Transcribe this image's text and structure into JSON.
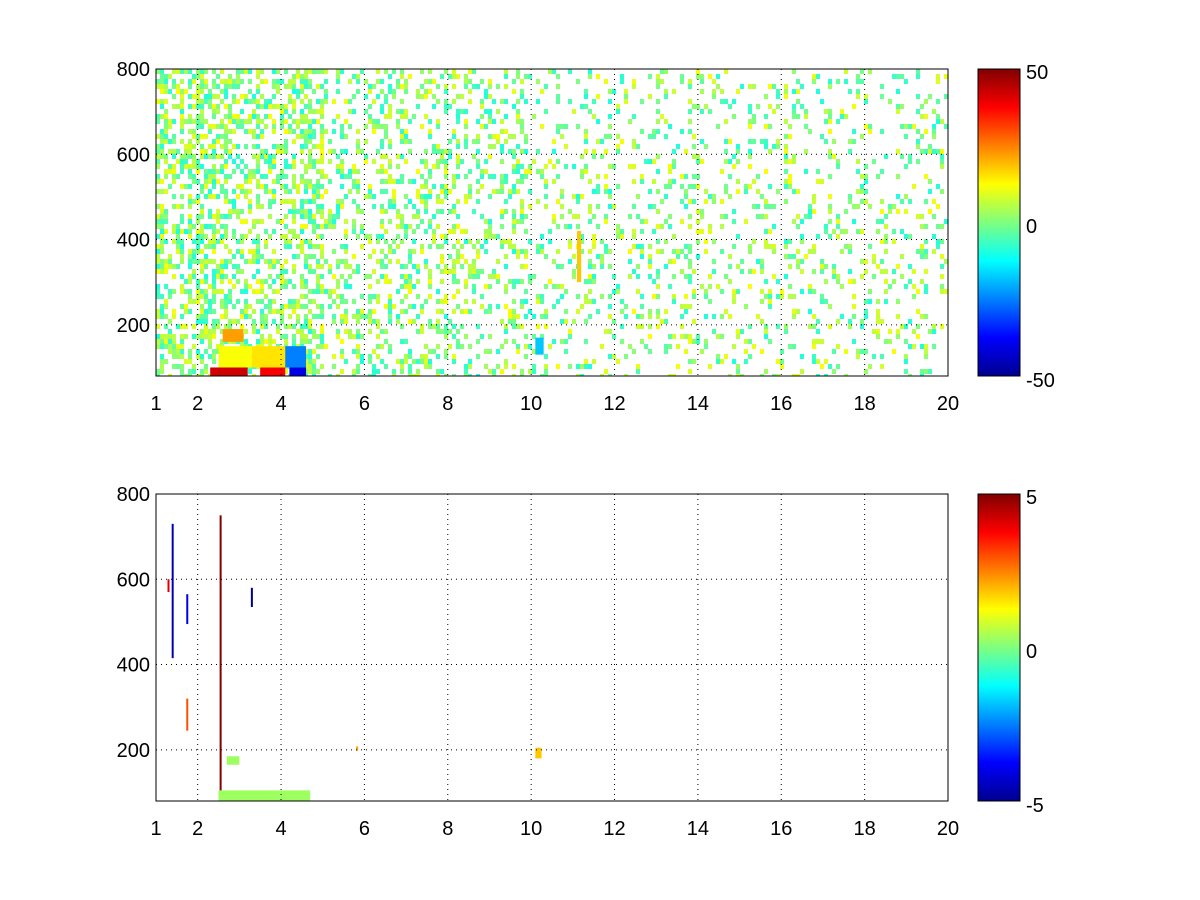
{
  "chart_data": [
    {
      "type": "heatmap",
      "title": "",
      "xlabel": "",
      "ylabel": "",
      "xlim": [
        1,
        20
      ],
      "ylim": [
        80,
        800
      ],
      "x_ticks": [
        1,
        2,
        4,
        6,
        8,
        10,
        12,
        14,
        16,
        18,
        20
      ],
      "y_ticks": [
        200,
        400,
        600,
        800
      ],
      "grid": true,
      "colormap": "jet",
      "colorbar": {
        "min": -50,
        "max": 50,
        "ticks": [
          "50",
          "0",
          "-50"
        ],
        "placement": "right"
      },
      "hotspots": [
        {
          "x": [
            2.3,
            3.2
          ],
          "y": [
            80,
            100
          ],
          "value": 42
        },
        {
          "x": [
            3.5,
            4.1
          ],
          "y": [
            80,
            100
          ],
          "value": 38
        },
        {
          "x": [
            4.2,
            4.6
          ],
          "y": [
            80,
            100
          ],
          "value": -40
        },
        {
          "x": [
            2.5,
            3.3
          ],
          "y": [
            100,
            150
          ],
          "value": 12
        },
        {
          "x": [
            3.3,
            4.1
          ],
          "y": [
            100,
            150
          ],
          "value": 15
        },
        {
          "x": [
            2.6,
            3.1
          ],
          "y": [
            160,
            190
          ],
          "value": 22
        },
        {
          "x": [
            4.1,
            4.6
          ],
          "y": [
            100,
            150
          ],
          "value": -25
        },
        {
          "x": [
            10.1,
            10.3
          ],
          "y": [
            130,
            170
          ],
          "value": -18
        },
        {
          "x": [
            11.1,
            11.2
          ],
          "y": [
            300,
            420
          ],
          "value": 18
        }
      ]
    },
    {
      "type": "heatmap",
      "title": "",
      "xlabel": "",
      "ylabel": "",
      "xlim": [
        1,
        20
      ],
      "ylim": [
        80,
        800
      ],
      "x_ticks": [
        1,
        2,
        4,
        6,
        8,
        10,
        12,
        14,
        16,
        18,
        20
      ],
      "y_ticks": [
        200,
        400,
        600,
        800
      ],
      "grid": true,
      "colormap": "jet",
      "colorbar": {
        "min": -5,
        "max": 5,
        "ticks": [
          "5",
          "0",
          "-5"
        ],
        "placement": "right"
      },
      "features": [
        {
          "kind": "vline",
          "x": 2.55,
          "y": [
            85,
            750
          ],
          "value": 5
        },
        {
          "kind": "vline",
          "x": 1.4,
          "y": [
            415,
            730
          ],
          "value": -4.5
        },
        {
          "kind": "vline",
          "x": 1.75,
          "y": [
            495,
            565
          ],
          "value": -4
        },
        {
          "kind": "vline",
          "x": 1.75,
          "y": [
            245,
            320
          ],
          "value": 3
        },
        {
          "kind": "vline",
          "x": 1.3,
          "y": [
            570,
            600
          ],
          "value": 4
        },
        {
          "kind": "vline",
          "x": 3.3,
          "y": [
            535,
            580
          ],
          "value": -5
        },
        {
          "kind": "patch",
          "x": [
            2.5,
            4.7
          ],
          "y": [
            80,
            105
          ],
          "value": 0.3
        },
        {
          "kind": "patch",
          "x": [
            2.7,
            3.0
          ],
          "y": [
            165,
            185
          ],
          "value": 0.3
        },
        {
          "kind": "patch",
          "x": [
            10.1,
            10.25
          ],
          "y": [
            180,
            205
          ],
          "value": 1.8
        },
        {
          "kind": "patch",
          "x": [
            5.8,
            5.85
          ],
          "y": [
            198,
            208
          ],
          "value": 2.2
        }
      ]
    }
  ]
}
